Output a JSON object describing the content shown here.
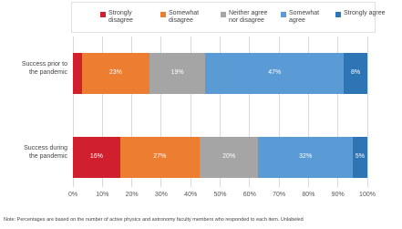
{
  "chart_data": {
    "type": "stacked-barh",
    "categories": [
      "Success prior to the pandemic",
      "Success during the pandemic"
    ],
    "series": [
      {
        "name": "Strongly disagree",
        "color": "#d0202e",
        "values": [
          3,
          16
        ],
        "value_labels": [
          null,
          "16%"
        ]
      },
      {
        "name": "Somewhat disagree",
        "color": "#ed7d31",
        "values": [
          23,
          27
        ],
        "value_labels": [
          "23%",
          "27%"
        ]
      },
      {
        "name": "Neither agree nor disagree",
        "color": "#a5a5a5",
        "values": [
          19,
          20
        ],
        "value_labels": [
          "19%",
          "20%"
        ]
      },
      {
        "name": "Somewhat agree",
        "color": "#5b9bd5",
        "values": [
          47,
          32
        ],
        "value_labels": [
          "47%",
          "32%"
        ]
      },
      {
        "name": "Strongly agree",
        "color": "#2e75b6",
        "values": [
          8,
          5
        ],
        "value_labels": [
          "8%",
          "5%"
        ]
      }
    ],
    "xlim": [
      0,
      100
    ],
    "xticks": [
      {
        "value": 0,
        "label": "0%"
      },
      {
        "value": 10,
        "label": "10%"
      },
      {
        "value": 20,
        "label": "20%"
      },
      {
        "value": 30,
        "label": "30%"
      },
      {
        "value": 40,
        "label": "40%"
      },
      {
        "value": 50,
        "label": "50%"
      },
      {
        "value": 60,
        "label": "60%"
      },
      {
        "value": 70,
        "label": "70%"
      },
      {
        "value": 80,
        "label": "80%"
      },
      {
        "value": 90,
        "label": "90%"
      },
      {
        "value": 100,
        "label": "100%"
      }
    ],
    "grid": true,
    "note": "Note: Percentages are based on the number of active physics and astronomy faculty members who responded to each item. Unlabeled"
  }
}
